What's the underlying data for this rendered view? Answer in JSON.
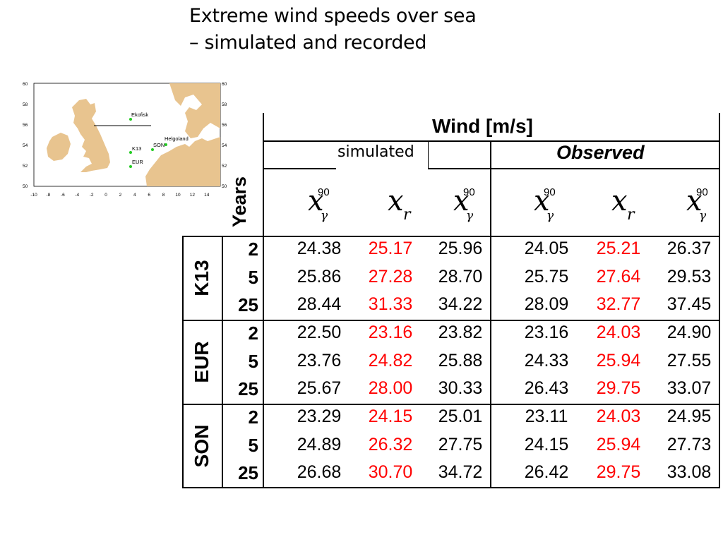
{
  "title": {
    "line1": "Extreme wind speeds over sea",
    "line2": "– simulated and recorded"
  },
  "map": {
    "lat_labels": [
      "60",
      "58",
      "56",
      "54",
      "52",
      "50"
    ],
    "lon_labels": [
      "-10",
      "-8",
      "-6",
      "-4",
      "-2",
      "0",
      "2",
      "4",
      "6",
      "8",
      "10",
      "12",
      "14"
    ],
    "stations": [
      "Ekofisk",
      "Helgoland",
      "K13",
      "SON",
      "EUR"
    ],
    "land_color": "#e8c48f",
    "station_color": "#22cc22"
  },
  "table": {
    "header_wind": "Wind [m/s]",
    "header_simulated": "simulated",
    "header_observed": "Observed",
    "header_years": "Years",
    "sym_main": "x",
    "sup_90": "90",
    "sub_gamma": "γ",
    "sub_r": "r",
    "value_color_middle": "#ff0000",
    "groups": [
      {
        "site": "K13",
        "rows": [
          {
            "years": "2",
            "values": [
              "24.38",
              "25.17",
              "25.96",
              "24.05",
              "25.21",
              "26.37"
            ]
          },
          {
            "years": "5",
            "values": [
              "25.86",
              "27.28",
              "28.70",
              "25.75",
              "27.64",
              "29.53"
            ]
          },
          {
            "years": "25",
            "values": [
              "28.44",
              "31.33",
              "34.22",
              "28.09",
              "32.77",
              "37.45"
            ]
          }
        ]
      },
      {
        "site": "EUR",
        "rows": [
          {
            "years": "2",
            "values": [
              "22.50",
              "23.16",
              "23.82",
              "23.16",
              "24.03",
              "24.90"
            ]
          },
          {
            "years": "5",
            "values": [
              "23.76",
              "24.82",
              "25.88",
              "24.33",
              "25.94",
              "27.55"
            ]
          },
          {
            "years": "25",
            "values": [
              "25.67",
              "28.00",
              "30.33",
              "26.43",
              "29.75",
              "33.07"
            ]
          }
        ]
      },
      {
        "site": "SON",
        "rows": [
          {
            "years": "2",
            "values": [
              "23.29",
              "24.15",
              "25.01",
              "23.11",
              "24.03",
              "24.95"
            ]
          },
          {
            "years": "5",
            "values": [
              "24.89",
              "26.32",
              "27.75",
              "24.15",
              "25.94",
              "27.73"
            ]
          },
          {
            "years": "25",
            "values": [
              "26.68",
              "30.70",
              "34.72",
              "26.42",
              "29.75",
              "33.08"
            ]
          }
        ]
      }
    ]
  }
}
